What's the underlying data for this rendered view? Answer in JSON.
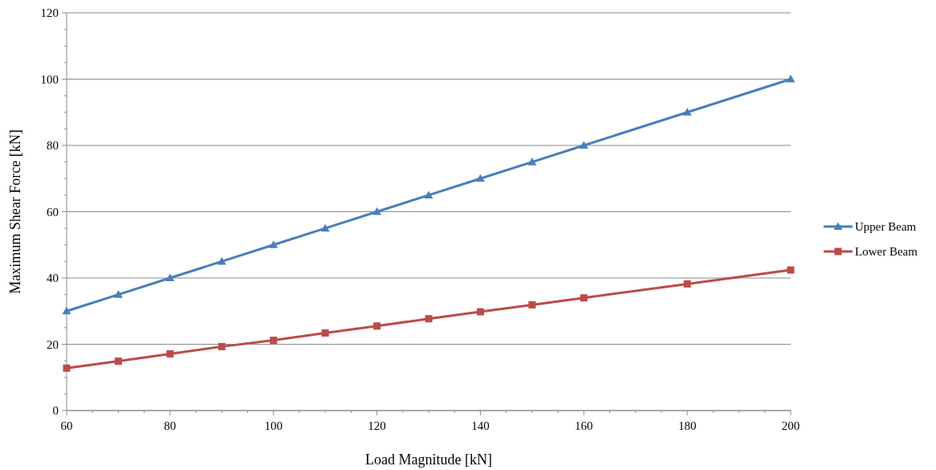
{
  "chart_data": {
    "type": "line",
    "xlabel": "Load Magnitude [kN]",
    "ylabel": "Maximum Shear Force [kN]",
    "x": [
      60,
      70,
      80,
      90,
      100,
      110,
      120,
      130,
      140,
      150,
      160,
      180,
      200
    ],
    "series": [
      {
        "name": "Upper Beam",
        "color": "#4a7ebb",
        "marker": "triangle",
        "values": [
          30,
          35,
          40,
          45,
          50,
          55,
          60,
          65,
          70,
          75,
          80,
          90,
          100
        ]
      },
      {
        "name": "Lower Beam",
        "color": "#be4b48",
        "marker": "square",
        "values": [
          12.8,
          14.9,
          17.1,
          19.3,
          21.2,
          23.4,
          25.5,
          27.7,
          29.8,
          31.9,
          34.0,
          38.2,
          42.4
        ]
      }
    ],
    "xlim": [
      60,
      200
    ],
    "ylim": [
      0,
      120
    ],
    "xticks": [
      60,
      {
        "value": 65,
        "label": null
      },
      {
        "value": 70,
        "label": null
      },
      {
        "value": 75,
        "label": null
      },
      80,
      {
        "value": 85,
        "label": null
      },
      {
        "value": 90,
        "label": null
      },
      {
        "value": 95,
        "label": null
      },
      100,
      {
        "value": 105,
        "label": null
      },
      {
        "value": 110,
        "label": null
      },
      {
        "value": 115,
        "label": null
      },
      120,
      {
        "value": 125,
        "label": null
      },
      {
        "value": 130,
        "label": null
      },
      {
        "value": 135,
        "label": null
      },
      140,
      {
        "value": 145,
        "label": null
      },
      {
        "value": 150,
        "label": null
      },
      {
        "value": 155,
        "label": null
      },
      160,
      {
        "value": 165,
        "label": null
      },
      {
        "value": 170,
        "label": null
      },
      {
        "value": 175,
        "label": null
      },
      180,
      {
        "value": 185,
        "label": null
      },
      {
        "value": 190,
        "label": null
      },
      {
        "value": 195,
        "label": null
      },
      200
    ],
    "yticks": [
      0,
      {
        "value": 5,
        "label": null
      },
      {
        "value": 10,
        "label": null
      },
      {
        "value": 15,
        "label": null
      },
      20,
      {
        "value": 25,
        "label": null
      },
      {
        "value": 30,
        "label": null
      },
      {
        "value": 35,
        "label": null
      },
      40,
      {
        "value": 45,
        "label": null
      },
      {
        "value": 50,
        "label": null
      },
      {
        "value": 55,
        "label": null
      },
      60,
      {
        "value": 65,
        "label": null
      },
      {
        "value": 70,
        "label": null
      },
      {
        "value": 75,
        "label": null
      },
      80,
      {
        "value": 85,
        "label": null
      },
      {
        "value": 90,
        "label": null
      },
      {
        "value": 95,
        "label": null
      },
      100,
      {
        "value": 105,
        "label": null
      },
      {
        "value": 110,
        "label": null
      },
      {
        "value": 115,
        "label": null
      },
      120
    ],
    "grid": "y",
    "legend": "right",
    "line_style": "solid"
  }
}
